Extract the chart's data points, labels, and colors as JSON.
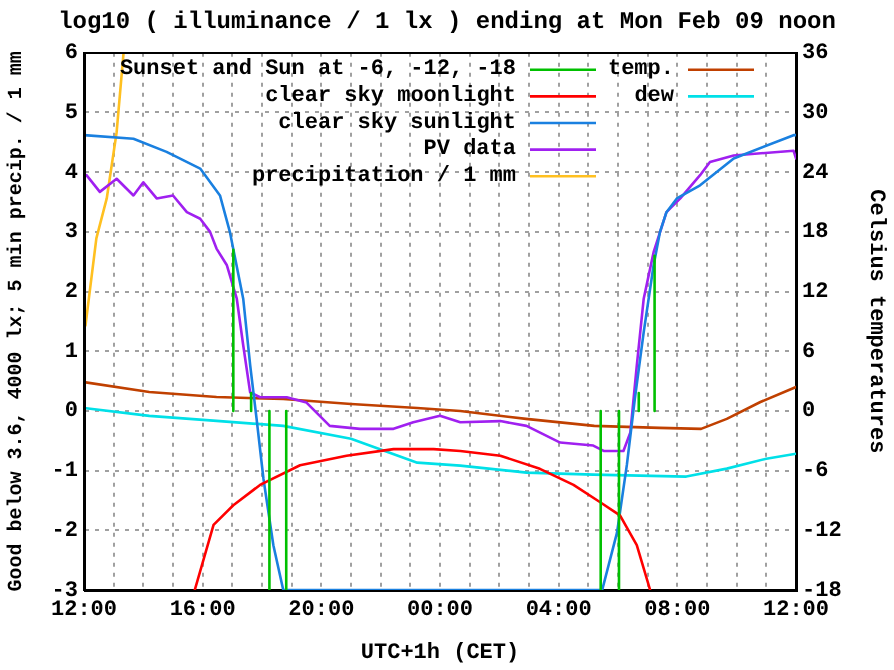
{
  "chart_data": {
    "type": "line",
    "title": "log10 ( illuminance / 1 lx ) ending at Mon Feb 09 noon",
    "xlabel": "UTC+1h (CET)",
    "ylabel": "Good below 3.6, 4000 lx; 5 min precip. / 1 mm",
    "y2label": "Celsius temperatures",
    "xlim": [
      "--02-08T12:00",
      "--02-09T12:00"
    ],
    "xticks": [
      {
        "value": "--02-08T12:00",
        "label": "12:00"
      },
      {
        "value": "--02-08T13:00",
        "label": null
      },
      {
        "value": "--02-08T14:00",
        "label": null
      },
      {
        "value": "--02-08T15:00",
        "label": null
      },
      {
        "value": "--02-08T16:00",
        "label": "16:00"
      },
      {
        "value": "--02-08T17:00",
        "label": null
      },
      {
        "value": "--02-08T18:00",
        "label": null
      },
      {
        "value": "--02-08T19:00",
        "label": null
      },
      {
        "value": "--02-08T20:00",
        "label": "20:00"
      },
      {
        "value": "--02-08T21:00",
        "label": null
      },
      {
        "value": "--02-08T22:00",
        "label": null
      },
      {
        "value": "--02-08T23:00",
        "label": null
      },
      {
        "value": "--02-09T00:00",
        "label": "00:00"
      },
      {
        "value": "--02-09T01:00",
        "label": null
      },
      {
        "value": "--02-09T02:00",
        "label": null
      },
      {
        "value": "--02-09T03:00",
        "label": null
      },
      {
        "value": "--02-09T04:00",
        "label": "04:00"
      },
      {
        "value": "--02-09T05:00",
        "label": null
      },
      {
        "value": "--02-09T06:00",
        "label": null
      },
      {
        "value": "--02-09T07:00",
        "label": null
      },
      {
        "value": "--02-09T08:00",
        "label": "08:00"
      },
      {
        "value": "--02-09T09:00",
        "label": null
      },
      {
        "value": "--02-09T10:00",
        "label": null
      },
      {
        "value": "--02-09T11:00",
        "label": null
      },
      {
        "value": "--02-09T12:00",
        "label": "12:00"
      }
    ],
    "ylim": [
      -3,
      6
    ],
    "yticks": [
      -3,
      -2,
      -1,
      0,
      1,
      2,
      3,
      4,
      5,
      6
    ],
    "y2lim": [
      -18,
      36
    ],
    "y2ticks": [
      -18,
      -12,
      -6,
      0,
      6,
      12,
      18,
      24,
      30,
      36
    ],
    "grid": true,
    "legend": "top",
    "marker": "none",
    "line_style": "solid",
    "series": [
      {
        "name": "Sunset and Sun at -6, -12, -18",
        "color": "#00c000",
        "x": [
          "--02-08T17:02",
          "--02-08T17:02"
        ],
        "values": [
          0,
          2.7
        ]
      },
      {
        "color": "#00c000",
        "x": [
          "--02-08T17:38",
          "--02-08T17:38"
        ],
        "values": [
          0,
          0.3
        ]
      },
      {
        "color": "#00c000",
        "x": [
          "--02-08T18:15",
          "--02-08T18:15"
        ],
        "values": [
          0,
          -3
        ]
      },
      {
        "color": "#00c000",
        "x": [
          "--02-08T18:49",
          "--02-08T18:49"
        ],
        "values": [
          0,
          -3
        ]
      },
      {
        "color": "#00c000",
        "x": [
          "--02-09T05:25",
          "--02-09T05:25"
        ],
        "values": [
          -3,
          0
        ]
      },
      {
        "color": "#00c000",
        "x": [
          "--02-09T06:02",
          "--02-09T06:02"
        ],
        "values": [
          -3,
          0
        ]
      },
      {
        "color": "#00c000",
        "x": [
          "--02-09T06:42",
          "--02-09T06:42"
        ],
        "values": [
          0,
          0.3
        ]
      },
      {
        "color": "#00c000",
        "x": [
          "--02-09T07:14",
          "--02-09T07:14"
        ],
        "values": [
          0,
          2.6
        ]
      },
      {
        "name": "clear sky moonlight",
        "color": "#ff0000",
        "x": [
          "--02-08T15:44",
          "--02-08T16:22",
          "--02-08T17:02",
          "--02-08T17:56",
          "--02-08T19:17",
          "--02-08T20:51",
          "--02-08T22:26",
          "--02-08T23:47",
          "--02-09T00:41",
          "--02-09T02:02",
          "--02-09T03:22",
          "--02-09T04:30",
          "--02-09T05:24",
          "--02-09T06:04",
          "--02-09T06:38",
          "--02-09T07:05"
        ],
        "values": [
          -3,
          -1.91,
          -1.58,
          -1.24,
          -0.91,
          -0.75,
          -0.64,
          -0.64,
          -0.67,
          -0.75,
          -0.97,
          -1.24,
          -1.53,
          -1.75,
          -2.25,
          -3
        ]
      },
      {
        "name": "clear sky sunlight",
        "color": "#1a80e0",
        "x": [
          "--02-08T12:00",
          "--02-08T13:40",
          "--02-08T14:47",
          "--02-08T15:55",
          "--02-08T16:35",
          "--02-08T16:55",
          "--02-08T17:22",
          "--02-08T17:36",
          "--02-08T17:49",
          "--02-08T18:03",
          "--02-08T18:23",
          "--02-08T18:43",
          "--02-09T05:28",
          "--02-09T05:58",
          "--02-09T06:18",
          "--02-09T06:34",
          "--02-09T06:52",
          "--02-09T07:12",
          "--02-09T07:25",
          "--02-09T07:38",
          "--02-09T07:59",
          "--02-09T08:46",
          "--02-09T09:54",
          "--02-09T11:55",
          "--02-09T12:00"
        ],
        "values": [
          4.62,
          4.56,
          4.34,
          4.06,
          3.61,
          3.0,
          1.88,
          0.77,
          -0.13,
          -1.14,
          -2.25,
          -3,
          -3,
          -2.04,
          -0.9,
          0.2,
          1.32,
          2.44,
          3.0,
          3.33,
          3.56,
          3.78,
          4.23,
          4.62,
          4.62
        ]
      },
      {
        "name": "PV data",
        "color": "#a020f0",
        "x": [
          "--02-08T12:05",
          "--02-08T12:32",
          "--02-08T13:06",
          "--02-08T13:40",
          "--02-08T14:00",
          "--02-08T14:27",
          "--02-08T15:00",
          "--02-08T15:28",
          "--02-08T15:55",
          "--02-08T16:15",
          "--02-08T16:28",
          "--02-08T16:49",
          "--02-08T17:09",
          "--02-08T17:22",
          "--02-08T17:36",
          "--02-08T17:56",
          "--02-08T18:50",
          "--02-08T19:30",
          "--02-08T20:17",
          "--02-08T21:18",
          "--02-08T22:26",
          "--02-08T23:06",
          "--02-09T00:00",
          "--02-09T00:41",
          "--02-09T02:02",
          "--02-09T02:55",
          "--02-09T04:03",
          "--02-09T05:10",
          "--02-09T05:31",
          "--02-09T06:11",
          "--02-09T06:25",
          "--02-09T06:38",
          "--02-09T06:52",
          "--02-09T07:12",
          "--02-09T07:38",
          "--02-09T08:06",
          "--02-09T08:46",
          "--02-09T09:06",
          "--02-09T09:54",
          "--02-09T11:55",
          "--02-09T12:00"
        ],
        "values": [
          3.95,
          3.67,
          3.89,
          3.61,
          3.83,
          3.56,
          3.61,
          3.33,
          3.22,
          3.0,
          2.72,
          2.44,
          1.88,
          1.1,
          0.31,
          0.23,
          0.23,
          0.14,
          -0.25,
          -0.3,
          -0.3,
          -0.19,
          -0.08,
          -0.19,
          -0.17,
          -0.25,
          -0.53,
          -0.58,
          -0.67,
          -0.67,
          -0.36,
          0.76,
          1.88,
          2.66,
          3.33,
          3.56,
          3.95,
          4.17,
          4.28,
          4.36,
          4.23
        ]
      },
      {
        "name": "precipitation / 1 mm",
        "color": "#ffc020",
        "x": [
          "--02-08T12:03",
          "--02-08T12:25",
          "--02-08T12:46",
          "--02-08T13:06",
          "--02-08T13:20"
        ],
        "values": [
          1.43,
          2.89,
          3.56,
          4.67,
          6
        ]
      },
      {
        "name": "temp.",
        "color": "#c04000",
        "axis": "y2",
        "x": [
          "--02-08T12:00",
          "--02-08T14:12",
          "--02-08T16:28",
          "--02-08T18:43",
          "--02-08T21:00",
          "--02-08T23:14",
          "--02-09T00:41",
          "--02-09T02:54",
          "--02-09T05:12",
          "--02-09T07:24",
          "--02-09T08:48",
          "--02-09T09:40",
          "--02-09T10:48",
          "--02-09T12:00"
        ],
        "values": [
          2.9,
          1.9,
          1.4,
          1.2,
          0.7,
          0.3,
          0,
          -0.8,
          -1.5,
          -1.7,
          -1.8,
          -0.8,
          0.9,
          2.4
        ]
      },
      {
        "name": "dew",
        "color": "#00e0e8",
        "axis": "y2",
        "x": [
          "--02-08T12:00",
          "--02-08T14:12",
          "--02-08T16:28",
          "--02-08T18:43",
          "--02-08T21:00",
          "--02-08T23:14",
          "--02-09T00:41",
          "--02-09T02:55",
          "--02-09T05:10",
          "--02-09T08:18",
          "--02-09T09:40",
          "--02-09T11:00",
          "--02-09T12:00"
        ],
        "values": [
          0.3,
          -0.5,
          -1.0,
          -1.5,
          -2.8,
          -5.2,
          -5.5,
          -6.2,
          -6.4,
          -6.6,
          -5.8,
          -4.8,
          -4.3
        ]
      }
    ]
  }
}
